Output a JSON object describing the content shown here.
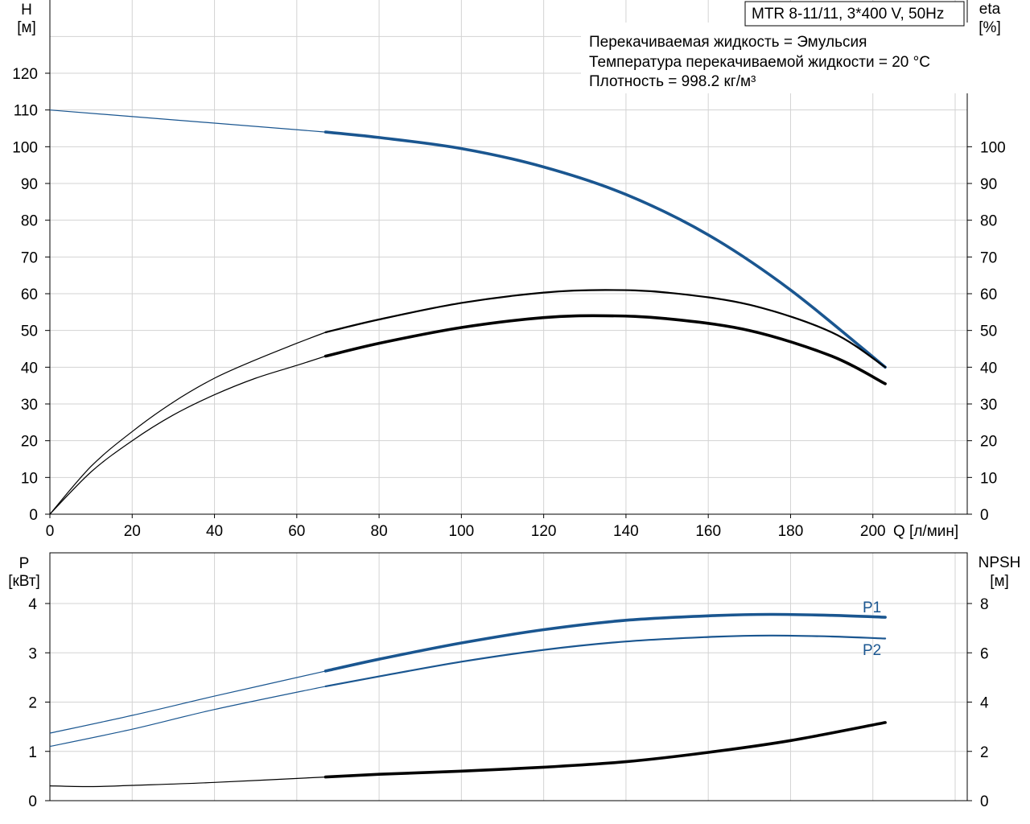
{
  "header": {
    "model": "MTR 8-11/11, 3*400 V, 50Hz",
    "info_lines": [
      "Перекачиваемая жидкость = Эмульсия",
      "Температура перекачиваемой жидкости = 20 °C",
      "Плотность = 998.2 кг/м³"
    ]
  },
  "top": {
    "y_left_title": "H",
    "y_left_unit": "[м]",
    "y_right_title": "eta",
    "y_right_unit": "[%]",
    "x_title": "Q [л/мин]"
  },
  "bottom": {
    "y_left_title": "P",
    "y_left_unit": "[кВт]",
    "y_right_title": "NPSH",
    "y_right_unit": "[м]",
    "p1_label": "P1",
    "p2_label": "P2"
  },
  "colors": {
    "blue": "#1a5690",
    "black": "#000000"
  },
  "chart_data": [
    {
      "type": "line",
      "title": "",
      "xlabel": "Q [л/мин]",
      "ylabel": "H [м]",
      "y2label": "eta [%]",
      "xlim": [
        0,
        220
      ],
      "ylim": [
        0,
        130
      ],
      "y2lim": [
        0,
        130
      ],
      "xticks": [
        0,
        20,
        40,
        60,
        80,
        100,
        120,
        140,
        160,
        180,
        200
      ],
      "yticks": [
        0,
        10,
        20,
        30,
        40,
        50,
        60,
        70,
        80,
        90,
        100,
        110,
        120
      ],
      "y2ticks": [
        0,
        10,
        20,
        30,
        40,
        50,
        60,
        70,
        80,
        90,
        100
      ],
      "grid": true,
      "series": [
        {
          "name": "",
          "axis": "left",
          "color": "#1a5690",
          "x": [
            0,
            67,
            80,
            100,
            120,
            140,
            160,
            180,
            203
          ],
          "y": [
            110,
            104,
            102.5,
            99.5,
            94.5,
            87,
            76,
            61,
            40
          ]
        },
        {
          "name": "",
          "axis": "right",
          "color": "#000000",
          "x": [
            0,
            10,
            20,
            30,
            40,
            50,
            60,
            67,
            80,
            100,
            120,
            135,
            150,
            170,
            190,
            203
          ],
          "y": [
            0,
            13,
            22.5,
            30.5,
            37,
            42,
            46.5,
            49.5,
            53,
            57.5,
            60.3,
            61,
            60.3,
            57,
            49.5,
            40
          ]
        },
        {
          "name": "",
          "axis": "right",
          "color": "#000000",
          "x": [
            0,
            10,
            20,
            30,
            40,
            50,
            60,
            67,
            80,
            100,
            120,
            135,
            150,
            170,
            190,
            203
          ],
          "y": [
            0,
            11.5,
            20,
            27,
            32.5,
            37,
            40.5,
            43,
            46.5,
            50.8,
            53.5,
            54,
            53.2,
            50,
            43,
            35.5
          ]
        }
      ]
    },
    {
      "type": "line",
      "title": "",
      "xlabel": "Q [л/мин]",
      "ylabel": "P [кВт]",
      "y2label": "NPSH [м]",
      "xlim": [
        0,
        220
      ],
      "ylim": [
        0,
        4.6
      ],
      "y2lim": [
        0,
        9.2
      ],
      "xticks": [
        0,
        20,
        40,
        60,
        80,
        100,
        120,
        140,
        160,
        180,
        200
      ],
      "yticks": [
        0,
        1,
        2,
        3,
        4
      ],
      "y2ticks": [
        0,
        2,
        4,
        6,
        8
      ],
      "grid": true,
      "series": [
        {
          "name": "P1",
          "axis": "left",
          "color": "#1a5690",
          "x": [
            0,
            20,
            40,
            67,
            80,
            100,
            120,
            140,
            160,
            175,
            190,
            203
          ],
          "y": [
            1.37,
            1.73,
            2.12,
            2.63,
            2.87,
            3.2,
            3.47,
            3.66,
            3.75,
            3.78,
            3.76,
            3.72
          ]
        },
        {
          "name": "P2",
          "axis": "left",
          "color": "#1a5690",
          "x": [
            0,
            20,
            40,
            67,
            80,
            100,
            120,
            140,
            160,
            175,
            190,
            203
          ],
          "y": [
            1.1,
            1.45,
            1.85,
            2.32,
            2.52,
            2.82,
            3.06,
            3.23,
            3.32,
            3.35,
            3.33,
            3.29
          ]
        },
        {
          "name": "",
          "axis": "right",
          "color": "#000000",
          "x": [
            0,
            10,
            20,
            40,
            67,
            80,
            100,
            120,
            140,
            160,
            180,
            203
          ],
          "y": [
            0.6,
            0.57,
            0.62,
            0.74,
            0.96,
            1.07,
            1.2,
            1.36,
            1.58,
            1.96,
            2.44,
            3.17
          ]
        }
      ]
    }
  ]
}
